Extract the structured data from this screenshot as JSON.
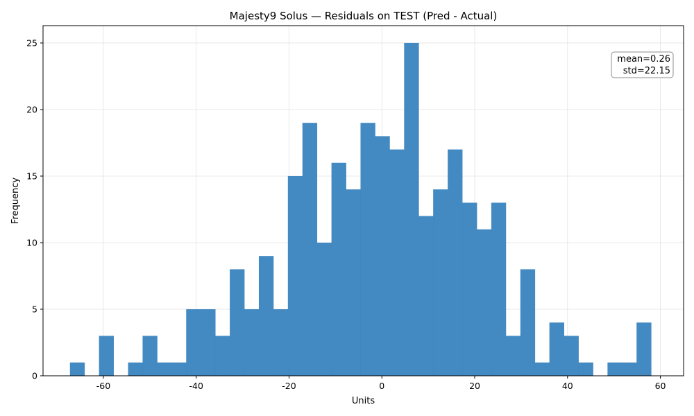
{
  "chart_data": {
    "type": "bar",
    "title": "Majesty9 Solus — Residuals on TEST (Pred - Actual)",
    "xlabel": "Units",
    "ylabel": "Frequency",
    "xlim": [
      -73,
      65
    ],
    "ylim": [
      0,
      26.3
    ],
    "xticks": [
      -60,
      -40,
      -20,
      0,
      20,
      40,
      60
    ],
    "yticks": [
      0,
      5,
      10,
      15,
      20,
      25
    ],
    "grid": true,
    "bar_color": "#3a84bf",
    "bins": {
      "start": -67.2,
      "width": 3.13,
      "counts": [
        1,
        0,
        3,
        0,
        1,
        3,
        1,
        1,
        5,
        5,
        3,
        8,
        5,
        9,
        5,
        15,
        19,
        10,
        16,
        14,
        19,
        18,
        17,
        25,
        12,
        14,
        17,
        13,
        11,
        13,
        3,
        8,
        1,
        4,
        3,
        1,
        0,
        1,
        1,
        4
      ]
    },
    "stats_box": {
      "position": "top-right",
      "lines": [
        "mean=0.26",
        "std=22.15"
      ]
    }
  }
}
